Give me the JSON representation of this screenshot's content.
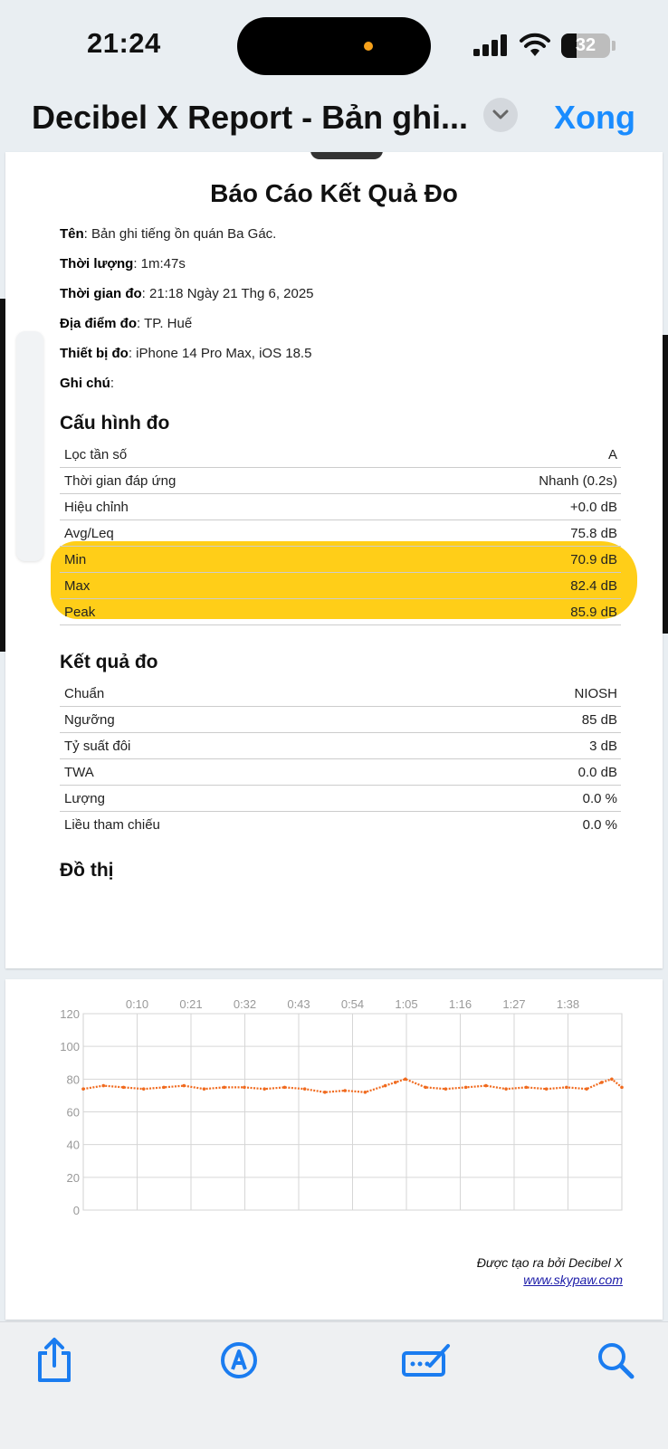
{
  "status_bar": {
    "time": "21:24",
    "battery_level": "32"
  },
  "nav": {
    "title": "Decibel X Report - Bản ghi...",
    "done_label": "Xong"
  },
  "report": {
    "title": "Báo Cáo Kết Quả Đo",
    "info": [
      {
        "label": "Tên",
        "value": ": Bản ghi tiếng ồn quán Ba Gác."
      },
      {
        "label": "Thời lượng",
        "value": ": 1m:47s"
      },
      {
        "label": "Thời gian đo",
        "value": ": 21:18 Ngày 21 Thg 6, 2025"
      },
      {
        "label": "Địa điểm đo",
        "value": ": TP. Huế"
      },
      {
        "label": "Thiết bị đo",
        "value": ": iPhone 14 Pro Max, iOS 18.5"
      },
      {
        "label": "Ghi chú",
        "value": ":"
      }
    ],
    "config_title": "Cấu hình đo",
    "config_rows": [
      {
        "label": "Lọc tần số",
        "value": "A"
      },
      {
        "label": "Thời gian đáp ứng",
        "value": "Nhanh (0.2s)"
      },
      {
        "label": "Hiệu chỉnh",
        "value": "+0.0 dB"
      },
      {
        "label": "Avg/Leq",
        "value": "75.8 dB"
      },
      {
        "label": "Min",
        "value": "70.9 dB"
      },
      {
        "label": "Max",
        "value": "82.4 dB"
      },
      {
        "label": "Peak",
        "value": "85.9 dB"
      }
    ],
    "results_title": "Kết quả đo",
    "results_rows": [
      {
        "label": "Chuẩn",
        "value": "NIOSH"
      },
      {
        "label": "Ngưỡng",
        "value": "85 dB"
      },
      {
        "label": "Tỷ suất đôi",
        "value": "3 dB"
      },
      {
        "label": "TWA",
        "value": "0.0 dB"
      },
      {
        "label": "Lượng",
        "value": "0.0 %"
      },
      {
        "label": "Liều tham chiếu",
        "value": "0.0 %"
      }
    ],
    "graph_title": "Đồ thị",
    "credit_text": "Được tạo ra bởi Decibel X",
    "credit_link": "www.skypaw.com"
  },
  "chart_data": {
    "type": "scatter",
    "x_ticks": [
      "0:10",
      "0:21",
      "0:32",
      "0:43",
      "0:54",
      "1:05",
      "1:16",
      "1:27",
      "1:38"
    ],
    "y_ticks": [
      120,
      100,
      80,
      60,
      40,
      20,
      0
    ],
    "ylim": [
      0,
      120
    ],
    "xlim_seconds": [
      0,
      107
    ],
    "color": "#f06a1e",
    "series": [
      {
        "x": [
          0,
          4,
          8,
          12,
          16,
          20,
          24,
          28,
          32,
          36,
          40,
          44,
          48,
          52,
          56,
          60,
          62,
          64,
          68,
          72,
          76,
          80,
          84,
          88,
          92,
          96,
          100,
          103,
          105,
          107
        ],
        "values": [
          74,
          76,
          75,
          74,
          75,
          76,
          74,
          75,
          75,
          74,
          75,
          74,
          72,
          73,
          72,
          76,
          78,
          80,
          75,
          74,
          75,
          76,
          74,
          75,
          74,
          75,
          74,
          78,
          80,
          75
        ]
      }
    ]
  }
}
